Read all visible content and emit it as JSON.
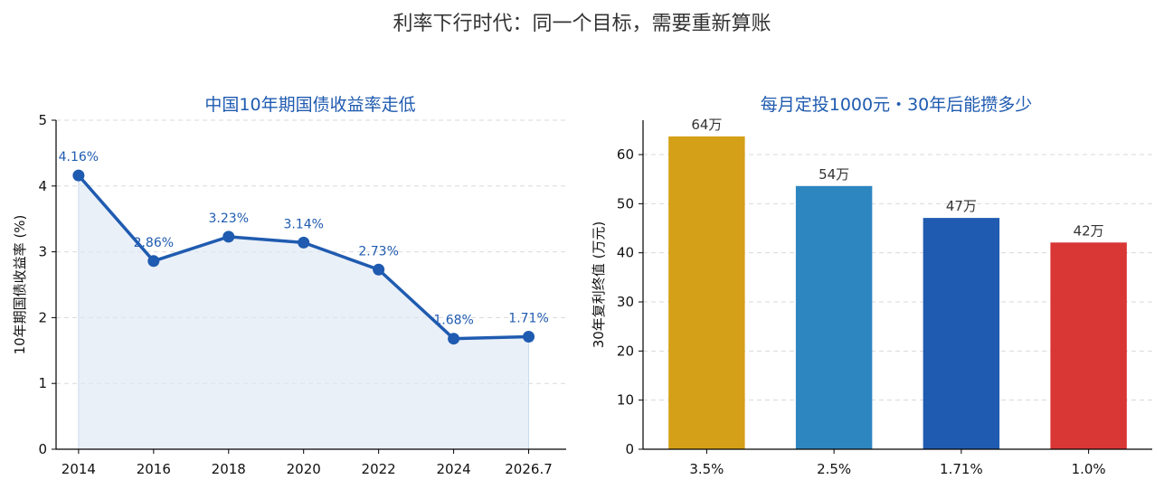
{
  "suptitle": "利率下行时代：同一个目标，需要重新算账",
  "chart_data": [
    {
      "type": "line",
      "title": "中国10年期国债收益率走低",
      "xlabel": "",
      "ylabel": "10年期国债收益率 (%)",
      "categories": [
        "2014",
        "2016",
        "2018",
        "2020",
        "2022",
        "2024",
        "2026.7"
      ],
      "x": [
        2014,
        2016,
        2018,
        2020,
        2022,
        2024,
        2026
      ],
      "values": [
        4.16,
        2.86,
        3.23,
        3.14,
        2.73,
        1.68,
        1.71
      ],
      "point_labels": [
        "4.16%",
        "2.86%",
        "3.23%",
        "3.14%",
        "2.73%",
        "1.68%",
        "1.71%"
      ],
      "ylim": [
        0,
        5
      ],
      "yticks": [
        "0",
        "1",
        "2",
        "3",
        "4",
        "5"
      ],
      "grid": "horizontal dashed",
      "fill_area": true,
      "color": "#1f5bb0",
      "fill_color": "#dfe8f4"
    },
    {
      "type": "bar",
      "title": "每月定投1000元・30年后能攒多少",
      "xlabel": "",
      "ylabel": "30年复利终值 (万元)",
      "categories": [
        "3.5%",
        "2.5%",
        "1.71%",
        "1.0%"
      ],
      "values": [
        63.7,
        53.6,
        47.1,
        42.1
      ],
      "bar_labels": [
        "64万",
        "54万",
        "47万",
        "42万"
      ],
      "colors": [
        "#d4a017",
        "#2e86c1",
        "#1f5bb0",
        "#d93636"
      ],
      "ylim": [
        0,
        67
      ],
      "yticks": [
        "0",
        "10",
        "20",
        "30",
        "40",
        "50",
        "60"
      ],
      "grid": "horizontal dashed"
    }
  ]
}
